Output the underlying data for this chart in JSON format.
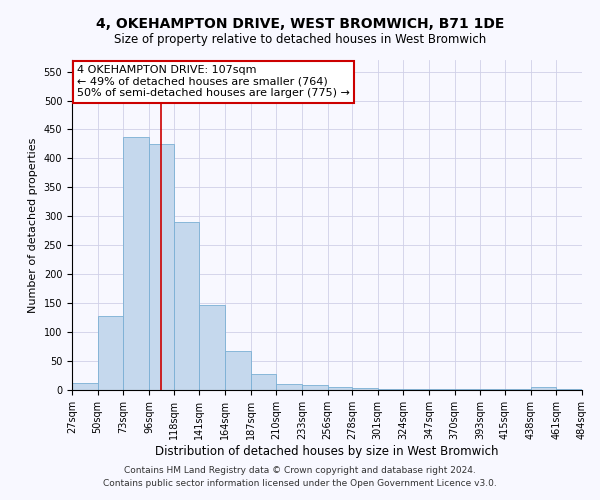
{
  "title": "4, OKEHAMPTON DRIVE, WEST BROMWICH, B71 1DE",
  "subtitle": "Size of property relative to detached houses in West Bromwich",
  "xlabel": "Distribution of detached houses by size in West Bromwich",
  "ylabel": "Number of detached properties",
  "footer_line1": "Contains HM Land Registry data © Crown copyright and database right 2024.",
  "footer_line2": "Contains public sector information licensed under the Open Government Licence v3.0.",
  "annotation_line1": "4 OKEHAMPTON DRIVE: 107sqm",
  "annotation_line2": "← 49% of detached houses are smaller (764)",
  "annotation_line3": "50% of semi-detached houses are larger (775) →",
  "bar_color": "#c5d8ed",
  "bar_edge_color": "#7aafd4",
  "ref_line_color": "#cc0000",
  "ref_line_x": 107,
  "bin_edges": [
    27,
    50,
    73,
    96,
    118,
    141,
    164,
    187,
    210,
    233,
    256,
    278,
    301,
    324,
    347,
    370,
    393,
    415,
    438,
    461,
    484
  ],
  "bar_heights": [
    12,
    127,
    437,
    425,
    290,
    147,
    68,
    27,
    11,
    8,
    5,
    4,
    1,
    1,
    1,
    1,
    1,
    1,
    6,
    1
  ],
  "ylim": [
    0,
    570
  ],
  "yticks": [
    0,
    50,
    100,
    150,
    200,
    250,
    300,
    350,
    400,
    450,
    500,
    550
  ],
  "annotation_box_color": "#ffffff",
  "annotation_box_edge": "#cc0000",
  "bg_color": "#f8f8ff",
  "title_fontsize": 10,
  "subtitle_fontsize": 8.5,
  "ylabel_fontsize": 8,
  "xlabel_fontsize": 8.5,
  "tick_fontsize": 7,
  "footer_fontsize": 6.5,
  "annotation_fontsize": 8
}
